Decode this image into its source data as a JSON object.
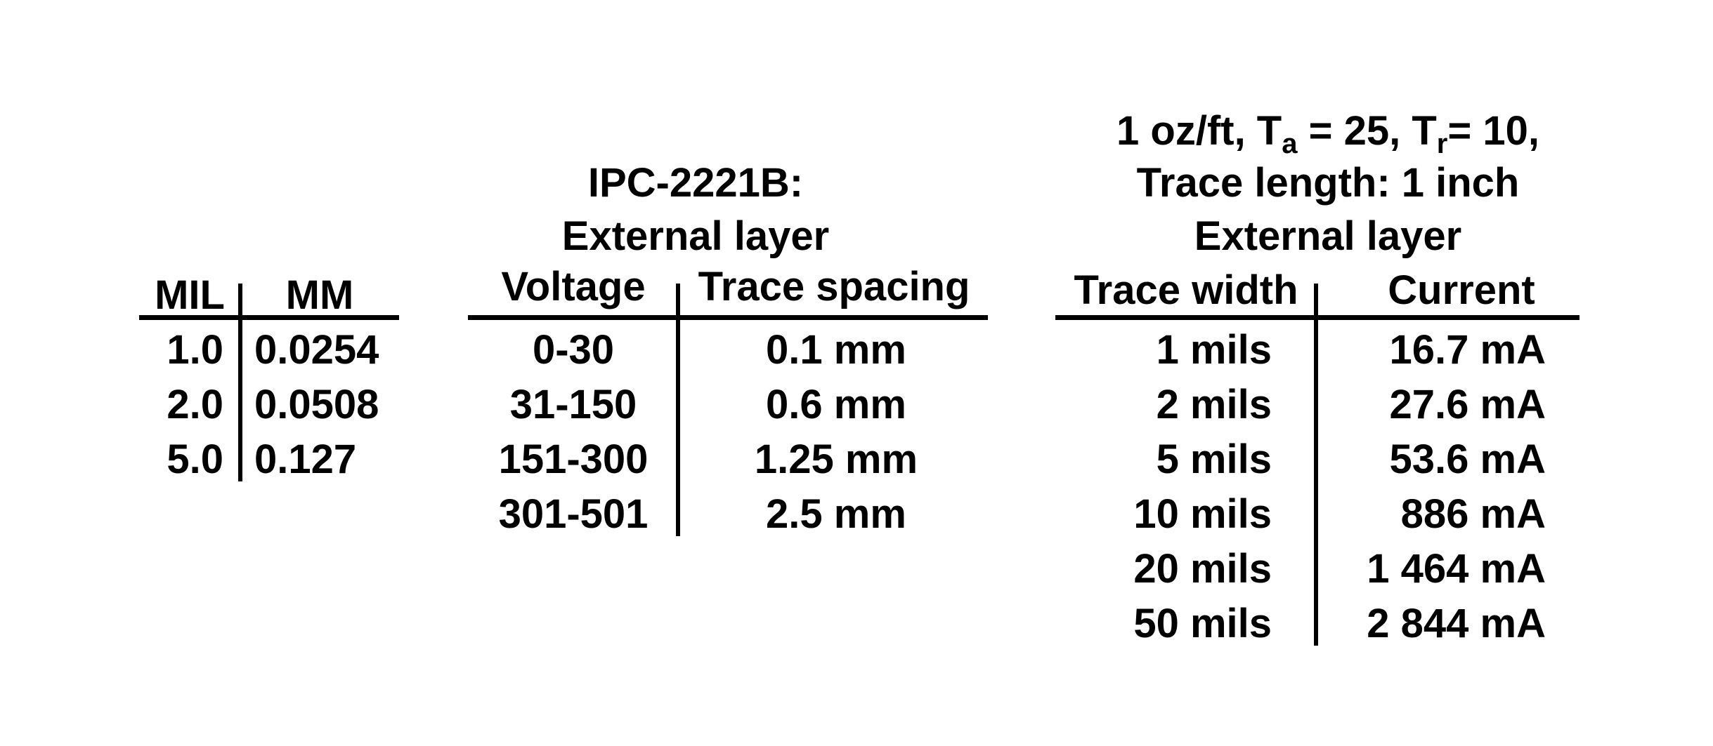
{
  "mil_table": {
    "headers": [
      "MIL",
      "MM"
    ],
    "rows": [
      [
        "1.0",
        "0.0254"
      ],
      [
        "2.0",
        "0.0508"
      ],
      [
        "5.0",
        "0.127"
      ]
    ]
  },
  "ipc_table": {
    "title_1": "IPC-2221B:",
    "title_2": "External layer",
    "headers": [
      "Voltage",
      "Trace spacing"
    ],
    "rows": [
      [
        "0-30",
        "0.1 mm"
      ],
      [
        "31-150",
        "0.6 mm"
      ],
      [
        "151-300",
        "1.25 mm"
      ],
      [
        "301-501",
        "2.5 mm"
      ]
    ]
  },
  "current_table": {
    "title_1_a": "1 oz/ft, T",
    "title_1_sub_a": "a",
    "title_1_b": " = 25, T",
    "title_1_sub_r": "r",
    "title_1_c": "= 10,",
    "title_2": "Trace length: 1 inch",
    "title_3": "External layer",
    "headers": [
      "Trace width",
      "Current"
    ],
    "rows": [
      [
        "1 mils",
        "16.7 mA"
      ],
      [
        "2 mils",
        "27.6 mA"
      ],
      [
        "5 mils",
        "53.6 mA"
      ],
      [
        "10 mils",
        "886 mA"
      ],
      [
        "20 mils",
        "1 464 mA"
      ],
      [
        "50 mils",
        "2 844 mA"
      ]
    ]
  }
}
